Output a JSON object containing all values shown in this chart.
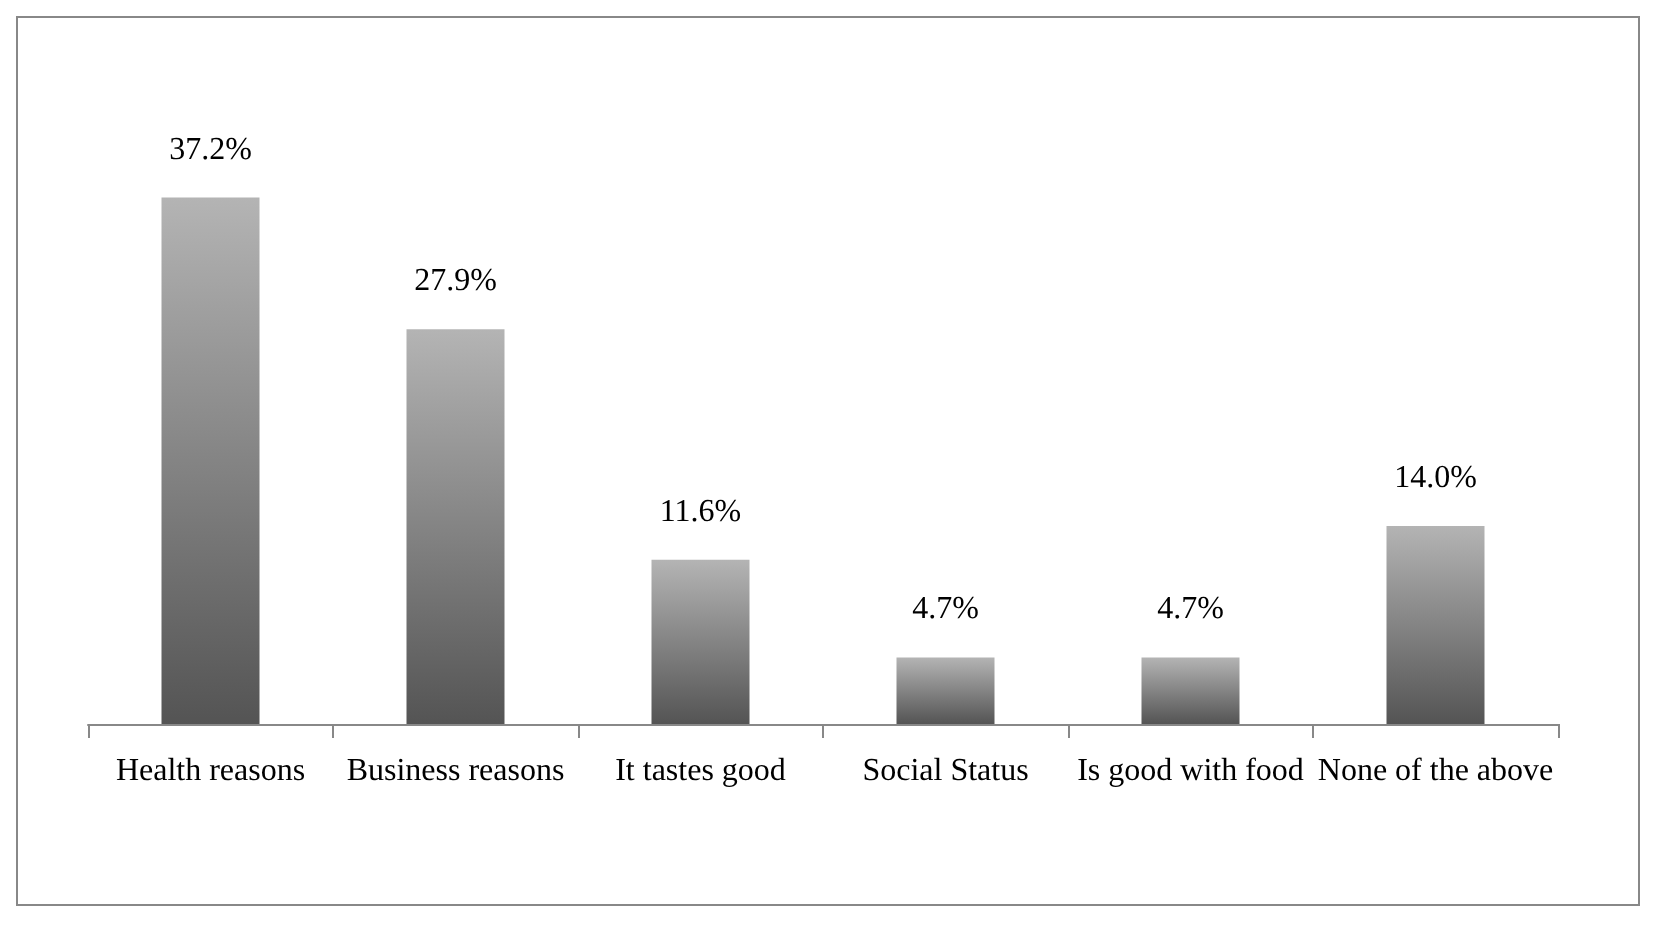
{
  "chart_data": {
    "type": "bar",
    "categories": [
      "Health reasons",
      "Business reasons",
      "It tastes good",
      "Social Status",
      "Is good with food",
      "None of the above"
    ],
    "values": [
      37.2,
      27.9,
      11.6,
      4.7,
      4.7,
      14.0
    ],
    "value_labels": [
      "37.2%",
      "27.9%",
      "11.6%",
      "4.7%",
      "4.7%",
      "14.0%"
    ],
    "color": "#8c8c8c"
  }
}
